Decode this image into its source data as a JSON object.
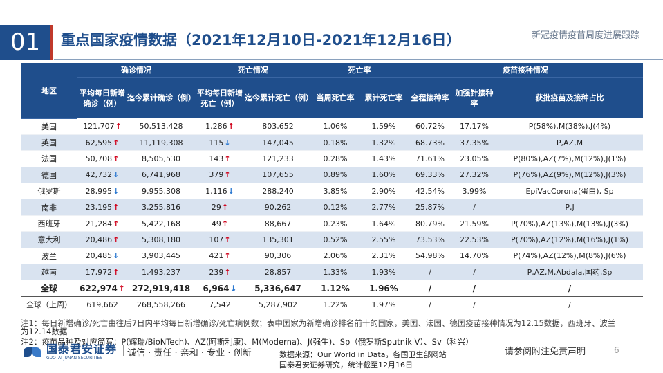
{
  "header": {
    "section_number": "01",
    "title": "重点国家疫情数据（2021年12月10日-2021年12月16日）",
    "subtitle": "新冠疫情疫苗周度进展跟踪"
  },
  "table": {
    "region_header": "地区",
    "group_headers": [
      "确诊情况",
      "死亡情况",
      "死亡率",
      "疫苗接种情况"
    ],
    "sub_headers": [
      "平均每日新增确诊（例）",
      "迄今累计确诊（例）",
      "平均每日新增死亡（例）",
      "迄今累计死亡（例）",
      "当周死亡率",
      "累计死亡率",
      "全程接种率",
      "加强针接种率",
      "获批疫苗及接种占比"
    ],
    "rows": [
      {
        "region": "美国",
        "daily_cases": "121,707",
        "cases_trend": "up",
        "total_cases": "50,513,428",
        "daily_deaths": "1,286",
        "deaths_trend": "up",
        "total_deaths": "803,652",
        "weekly_cfr": "1.06%",
        "cum_cfr": "1.59%",
        "full_vax": "60.72%",
        "booster": "17.17%",
        "vaccines": "P(58%),M(38%),J(4%)"
      },
      {
        "region": "英国",
        "daily_cases": "62,595",
        "cases_trend": "up",
        "total_cases": "11,119,308",
        "daily_deaths": "115",
        "deaths_trend": "down",
        "total_deaths": "147,045",
        "weekly_cfr": "0.18%",
        "cum_cfr": "1.32%",
        "full_vax": "68.73%",
        "booster": "37.35%",
        "vaccines": "P,AZ,M"
      },
      {
        "region": "法国",
        "daily_cases": "50,708",
        "cases_trend": "up",
        "total_cases": "8,505,530",
        "daily_deaths": "143",
        "deaths_trend": "up",
        "total_deaths": "121,233",
        "weekly_cfr": "0.28%",
        "cum_cfr": "1.43%",
        "full_vax": "71.61%",
        "booster": "23.05%",
        "vaccines": "P(80%),AZ(7%),M(12%),J(1%)"
      },
      {
        "region": "德国",
        "daily_cases": "42,732",
        "cases_trend": "down",
        "total_cases": "6,741,968",
        "daily_deaths": "379",
        "deaths_trend": "up",
        "total_deaths": "107,655",
        "weekly_cfr": "0.89%",
        "cum_cfr": "1.60%",
        "full_vax": "69.33%",
        "booster": "27.32%",
        "vaccines": "P(76%),AZ(9%),M(12%),J(3%)"
      },
      {
        "region": "俄罗斯",
        "daily_cases": "28,995",
        "cases_trend": "down",
        "total_cases": "9,955,308",
        "daily_deaths": "1,116",
        "deaths_trend": "down",
        "total_deaths": "288,240",
        "weekly_cfr": "3.85%",
        "cum_cfr": "2.90%",
        "full_vax": "42.54%",
        "booster": "3.99%",
        "vaccines": "EpiVacCorona(蛋白), Sp"
      },
      {
        "region": "南非",
        "daily_cases": "23,195",
        "cases_trend": "up",
        "total_cases": "3,255,816",
        "daily_deaths": "29",
        "deaths_trend": "up",
        "total_deaths": "90,262",
        "weekly_cfr": "0.12%",
        "cum_cfr": "2.77%",
        "full_vax": "25.87%",
        "booster": "/",
        "vaccines": "P,J"
      },
      {
        "region": "西班牙",
        "daily_cases": "21,284",
        "cases_trend": "up",
        "total_cases": "5,422,168",
        "daily_deaths": "49",
        "deaths_trend": "up",
        "total_deaths": "88,667",
        "weekly_cfr": "0.23%",
        "cum_cfr": "1.64%",
        "full_vax": "80.79%",
        "booster": "21.59%",
        "vaccines": "P(70%),AZ(13%),M(13%),J(3%)"
      },
      {
        "region": "意大利",
        "daily_cases": "20,486",
        "cases_trend": "up",
        "total_cases": "5,308,180",
        "daily_deaths": "107",
        "deaths_trend": "up",
        "total_deaths": "135,301",
        "weekly_cfr": "0.52%",
        "cum_cfr": "2.55%",
        "full_vax": "73.53%",
        "booster": "22.53%",
        "vaccines": "P(70%),AZ(12%),M(16%),J(1%)"
      },
      {
        "region": "波兰",
        "daily_cases": "20,485",
        "cases_trend": "down",
        "total_cases": "3,903,445",
        "daily_deaths": "421",
        "deaths_trend": "up",
        "total_deaths": "90,306",
        "weekly_cfr": "2.06%",
        "cum_cfr": "2.31%",
        "full_vax": "54.98%",
        "booster": "14.70%",
        "vaccines": "P(74%),AZ(12%),M(8%),J(6%)"
      },
      {
        "region": "越南",
        "daily_cases": "17,972",
        "cases_trend": "up",
        "total_cases": "1,493,237",
        "daily_deaths": "239",
        "deaths_trend": "up",
        "total_deaths": "28,857",
        "weekly_cfr": "1.33%",
        "cum_cfr": "1.93%",
        "full_vax": "/",
        "booster": "/",
        "vaccines": "P,AZ,M,Abdala,国药,Sp"
      }
    ],
    "global_row": {
      "region": "全球",
      "daily_cases": "622,974",
      "cases_trend": "up",
      "total_cases": "272,919,418",
      "daily_deaths": "6,964",
      "deaths_trend": "down",
      "total_deaths": "5,336,647",
      "weekly_cfr": "1.12%",
      "cum_cfr": "1.96%",
      "full_vax": "/",
      "booster": "/",
      "vaccines": "/"
    },
    "prev_row": {
      "region": "全球（上周）",
      "daily_cases": "619,662",
      "total_cases": "268,558,266",
      "daily_deaths": "7,542",
      "total_deaths": "5,287,902",
      "weekly_cfr": "1.22%",
      "cum_cfr": "1.97%",
      "full_vax": "/",
      "booster": "/",
      "vaccines": "/"
    }
  },
  "arrows": {
    "up": "↑",
    "down": "↓"
  },
  "colors": {
    "header_bg": "#1f4e8c",
    "up": "#d0021b",
    "down": "#2b78d0",
    "alt_row": "#d9e3f0"
  },
  "notes": {
    "note1_a": "注1：每日新增确诊/死亡由往后7日内平均每日新增确诊/死亡病例数；表中国家为新增确诊排名前十的国家，美国、法国、德国疫苗接种情况为12.15数据，西班牙、波兰",
    "note1_b": "为12.14数据",
    "note2": "注2：疫苗品种及对应简写：P(辉瑞/BioNTech)、AZ(阿斯利康)、M(Moderna)、J(强生)、Sp（俄罗斯Sputnik V）、Sv（科兴）"
  },
  "footer": {
    "logo_cn": "国泰君安证券",
    "logo_en": "GUOTAI JUNAN SECURITIES",
    "slogan": "诚信 · 责任 · 亲和 · 专业 · 创新",
    "source_line1": "数据来源：Our World in Data，各国卫生部网站",
    "source_line2": "国泰君安证券研究，统计截至12月16日",
    "disclaimer": "请参阅附注免责声明",
    "page_number": "6"
  }
}
